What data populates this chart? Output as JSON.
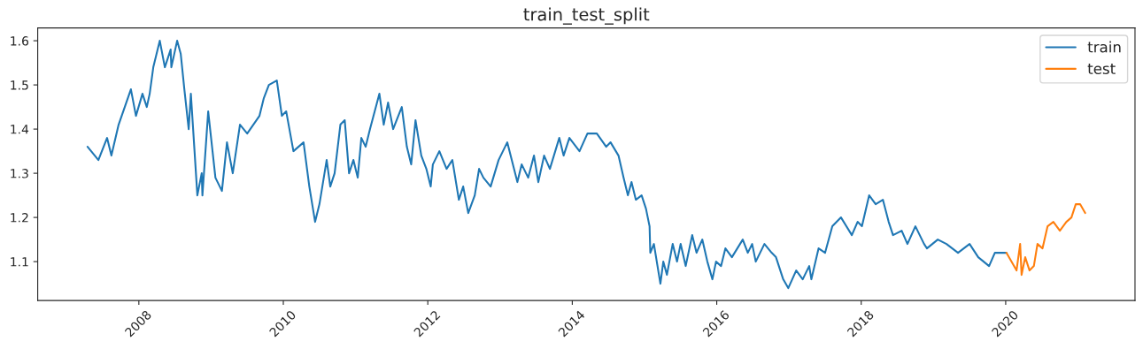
{
  "chart_data": {
    "type": "line",
    "title": "train_test_split",
    "xlim": [
      2006.6,
      2021.79
    ],
    "xticks": [
      2008,
      2010,
      2012,
      2014,
      2016,
      2018,
      2020
    ],
    "ylim": [
      1.012,
      1.629
    ],
    "yticks": [
      1.1,
      1.2,
      1.3,
      1.4,
      1.5,
      1.6
    ],
    "grid": false,
    "legend": "top right",
    "marker": "none",
    "line_style": "solid",
    "series": [
      {
        "name": "train",
        "color": "#1f77b4",
        "x": [
          2007.29,
          2007.44,
          2007.56,
          2007.62,
          2007.72,
          2007.89,
          2007.96,
          2008.05,
          2008.11,
          2008.15,
          2008.2,
          2008.29,
          2008.36,
          2008.44,
          2008.45,
          2008.53,
          2008.58,
          2008.63,
          2008.69,
          2008.72,
          2008.81,
          2008.87,
          2008.88,
          2008.96,
          2009.06,
          2009.15,
          2009.22,
          2009.3,
          2009.4,
          2009.5,
          2009.67,
          2009.73,
          2009.8,
          2009.91,
          2009.98,
          2010.04,
          2010.14,
          2010.28,
          2010.36,
          2010.44,
          2010.5,
          2010.6,
          2010.65,
          2010.71,
          2010.79,
          2010.85,
          2010.91,
          2010.97,
          2011.03,
          2011.08,
          2011.14,
          2011.2,
          2011.33,
          2011.39,
          2011.45,
          2011.52,
          2011.64,
          2011.71,
          2011.77,
          2011.83,
          2011.91,
          2011.98,
          2012.04,
          2012.07,
          2012.16,
          2012.26,
          2012.34,
          2012.43,
          2012.49,
          2012.56,
          2012.65,
          2012.71,
          2012.77,
          2012.87,
          2012.98,
          2013.1,
          2013.24,
          2013.3,
          2013.39,
          2013.47,
          2013.53,
          2013.61,
          2013.69,
          2013.82,
          2013.88,
          2013.96,
          2014.1,
          2014.21,
          2014.34,
          2014.47,
          2014.53,
          2014.64,
          2014.71,
          2014.77,
          2014.82,
          2014.88,
          2014.96,
          2015.02,
          2015.07,
          2015.08,
          2015.13,
          2015.22,
          2015.26,
          2015.31,
          2015.39,
          2015.45,
          2015.5,
          2015.57,
          2015.66,
          2015.72,
          2015.8,
          2015.87,
          2015.94,
          2015.99,
          2016.06,
          2016.12,
          2016.21,
          2016.36,
          2016.43,
          2016.49,
          2016.54,
          2016.66,
          2016.76,
          2016.82,
          2016.92,
          2016.99,
          2017.1,
          2017.19,
          2017.28,
          2017.31,
          2017.41,
          2017.5,
          2017.6,
          2017.72,
          2017.87,
          2017.95,
          2018.01,
          2018.11,
          2018.2,
          2018.3,
          2018.38,
          2018.44,
          2018.56,
          2018.64,
          2018.75,
          2018.87,
          2018.91,
          2019.06,
          2019.18,
          2019.34,
          2019.5,
          2019.62,
          2019.77,
          2019.85,
          2020.01
        ],
        "values": [
          1.36,
          1.33,
          1.38,
          1.34,
          1.41,
          1.49,
          1.43,
          1.48,
          1.45,
          1.48,
          1.54,
          1.6,
          1.54,
          1.58,
          1.54,
          1.6,
          1.57,
          1.49,
          1.4,
          1.48,
          1.25,
          1.3,
          1.25,
          1.44,
          1.29,
          1.26,
          1.37,
          1.3,
          1.41,
          1.39,
          1.43,
          1.47,
          1.5,
          1.51,
          1.43,
          1.44,
          1.35,
          1.37,
          1.27,
          1.19,
          1.23,
          1.33,
          1.27,
          1.3,
          1.41,
          1.42,
          1.3,
          1.33,
          1.29,
          1.38,
          1.36,
          1.4,
          1.48,
          1.41,
          1.46,
          1.4,
          1.45,
          1.36,
          1.32,
          1.42,
          1.34,
          1.31,
          1.27,
          1.32,
          1.35,
          1.31,
          1.33,
          1.24,
          1.27,
          1.21,
          1.25,
          1.31,
          1.29,
          1.27,
          1.33,
          1.37,
          1.28,
          1.32,
          1.29,
          1.34,
          1.28,
          1.34,
          1.31,
          1.38,
          1.34,
          1.38,
          1.35,
          1.39,
          1.39,
          1.36,
          1.37,
          1.34,
          1.29,
          1.25,
          1.28,
          1.24,
          1.25,
          1.22,
          1.18,
          1.12,
          1.14,
          1.05,
          1.1,
          1.07,
          1.14,
          1.1,
          1.14,
          1.09,
          1.16,
          1.12,
          1.15,
          1.1,
          1.06,
          1.1,
          1.09,
          1.13,
          1.11,
          1.15,
          1.12,
          1.14,
          1.1,
          1.14,
          1.12,
          1.11,
          1.06,
          1.04,
          1.08,
          1.06,
          1.09,
          1.06,
          1.13,
          1.12,
          1.18,
          1.2,
          1.16,
          1.19,
          1.18,
          1.25,
          1.23,
          1.24,
          1.19,
          1.16,
          1.17,
          1.14,
          1.18,
          1.14,
          1.13,
          1.15,
          1.14,
          1.12,
          1.14,
          1.11,
          1.09,
          1.12,
          1.12
        ]
      },
      {
        "name": "test",
        "color": "#ff7f0e",
        "x": [
          2020.01,
          2020.15,
          2020.2,
          2020.22,
          2020.27,
          2020.33,
          2020.39,
          2020.44,
          2020.51,
          2020.58,
          2020.66,
          2020.75,
          2020.84,
          2020.91,
          2020.97,
          2021.03,
          2021.1
        ],
        "values": [
          1.12,
          1.08,
          1.14,
          1.07,
          1.11,
          1.08,
          1.09,
          1.14,
          1.13,
          1.18,
          1.19,
          1.17,
          1.19,
          1.2,
          1.23,
          1.23,
          1.21
        ]
      }
    ]
  }
}
